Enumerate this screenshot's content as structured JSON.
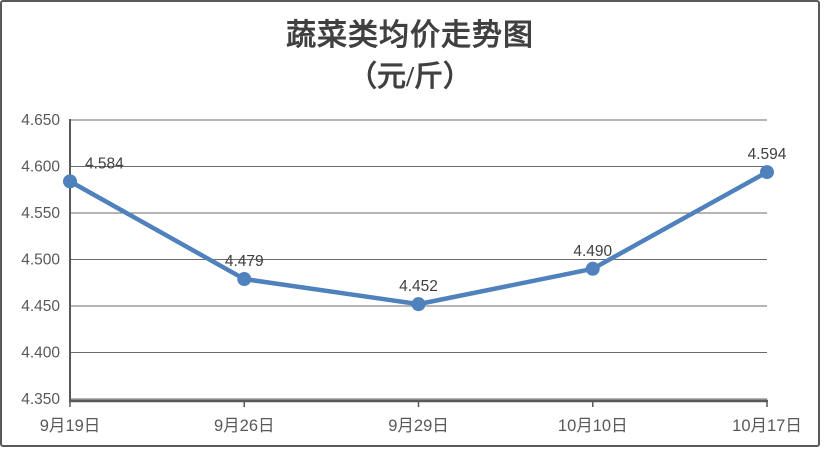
{
  "chart_data": {
    "type": "line",
    "title": "蔬菜类均价走势图",
    "subtitle": "（元/斤）",
    "categories": [
      "9月19日",
      "9月26日",
      "9月29日",
      "10月10日",
      "10月17日"
    ],
    "values": [
      4.584,
      4.479,
      4.452,
      4.49,
      4.594
    ],
    "data_labels": [
      "4.584",
      "4.479",
      "4.452",
      "4.490",
      "4.594"
    ],
    "ylim": [
      4.35,
      4.65
    ],
    "ytick_step": 0.05,
    "ytick_labels": [
      "4.650",
      "4.600",
      "4.550",
      "4.500",
      "4.450",
      "4.400",
      "4.350"
    ],
    "grid": "horizontal",
    "legend_position": "none",
    "marker": "circle",
    "colors": {
      "line": "#4F81BD",
      "marker": "#4F81BD",
      "grid": "#6B6B6B",
      "axis": "#595959",
      "axis_label": "#595959",
      "data_label": "#404040",
      "title": "#404040",
      "frame_border": "#595959",
      "background": "#FFFFFF"
    }
  }
}
